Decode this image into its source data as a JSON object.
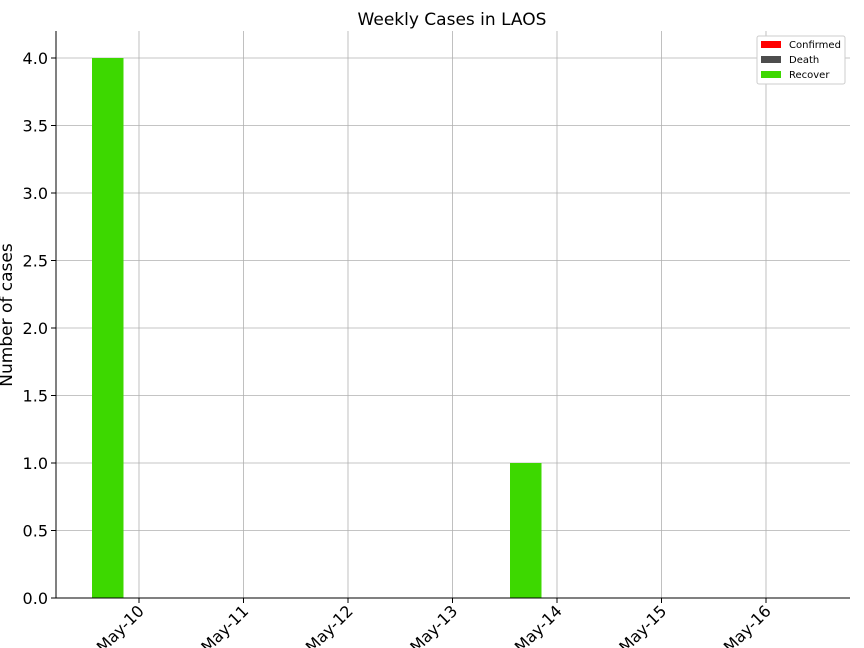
{
  "chart_data": {
    "type": "bar",
    "title": "Weekly Cases in LAOS",
    "xlabel": "",
    "ylabel": "Number of cases",
    "categories": [
      "May-10",
      "May-11",
      "May-12",
      "May-13",
      "May-14",
      "May-15",
      "May-16"
    ],
    "series": [
      {
        "name": "Confirmed",
        "color": "#ff0000",
        "values": [
          0,
          0,
          0,
          0,
          0,
          0,
          0
        ]
      },
      {
        "name": "Death",
        "color": "#4d4d4d",
        "values": [
          0,
          0,
          0,
          0,
          0,
          0,
          0
        ]
      },
      {
        "name": "Recover",
        "color": "#3dd800",
        "values": [
          4,
          0,
          0,
          0,
          1,
          0,
          0
        ]
      }
    ],
    "ylim": [
      0,
      4.2
    ],
    "yticks": [
      "0.0",
      "0.5",
      "1.0",
      "1.5",
      "2.0",
      "2.5",
      "3.0",
      "3.5",
      "4.0"
    ],
    "grid": true,
    "legend_position": "top-right"
  }
}
